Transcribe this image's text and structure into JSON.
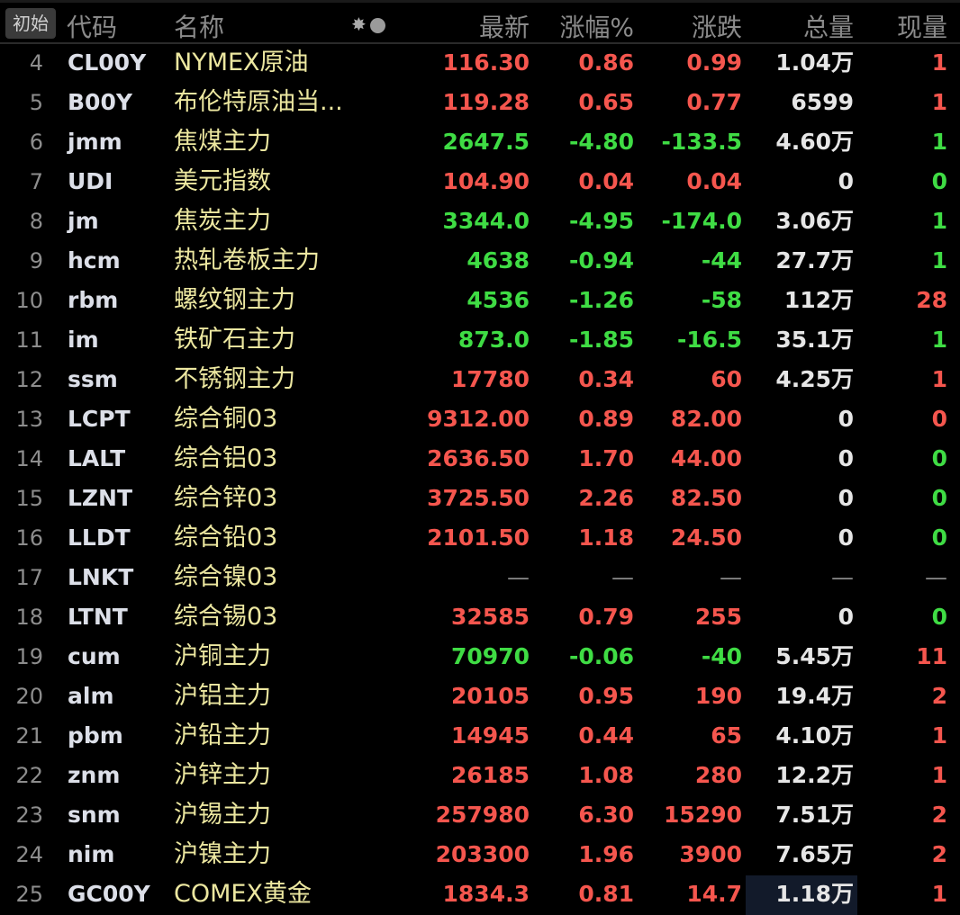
{
  "header": {
    "init_button": "初始",
    "columns": {
      "code": "代码",
      "name": "名称",
      "last": "最新",
      "pct": "涨幅%",
      "change": "涨跌",
      "volume": "总量",
      "current": "现量"
    },
    "icons": [
      "sun-icon",
      "circle-icon"
    ]
  },
  "colors": {
    "up": "#f5564e",
    "down": "#3fdc44",
    "name": "#ece7a0",
    "code": "#dcdfe8"
  },
  "rows": [
    {
      "n": "4",
      "code": "CL00Y",
      "name": "NYMEX原油",
      "last": "116.30",
      "pct": "0.86",
      "chg": "0.99",
      "vol": "1.04万",
      "cur": "1",
      "dir": "up",
      "curdir": "up"
    },
    {
      "n": "5",
      "code": "B00Y",
      "name": "布伦特原油当...",
      "last": "119.28",
      "pct": "0.65",
      "chg": "0.77",
      "vol": "6599",
      "cur": "1",
      "dir": "up",
      "curdir": "up"
    },
    {
      "n": "6",
      "code": "jmm",
      "name": "焦煤主力",
      "last": "2647.5",
      "pct": "-4.80",
      "chg": "-133.5",
      "vol": "4.60万",
      "cur": "1",
      "dir": "down",
      "curdir": "down"
    },
    {
      "n": "7",
      "code": "UDI",
      "name": "美元指数",
      "last": "104.90",
      "pct": "0.04",
      "chg": "0.04",
      "vol": "0",
      "cur": "0",
      "dir": "up",
      "curdir": "down"
    },
    {
      "n": "8",
      "code": "jm",
      "name": "焦炭主力",
      "last": "3344.0",
      "pct": "-4.95",
      "chg": "-174.0",
      "vol": "3.06万",
      "cur": "1",
      "dir": "down",
      "curdir": "down"
    },
    {
      "n": "9",
      "code": "hcm",
      "name": "热轧卷板主力",
      "last": "4638",
      "pct": "-0.94",
      "chg": "-44",
      "vol": "27.7万",
      "cur": "1",
      "dir": "down",
      "curdir": "down"
    },
    {
      "n": "10",
      "code": "rbm",
      "name": "螺纹钢主力",
      "last": "4536",
      "pct": "-1.26",
      "chg": "-58",
      "vol": "112万",
      "cur": "28",
      "dir": "down",
      "curdir": "up"
    },
    {
      "n": "11",
      "code": "im",
      "name": "铁矿石主力",
      "last": "873.0",
      "pct": "-1.85",
      "chg": "-16.5",
      "vol": "35.1万",
      "cur": "1",
      "dir": "down",
      "curdir": "down"
    },
    {
      "n": "12",
      "code": "ssm",
      "name": "不锈钢主力",
      "last": "17780",
      "pct": "0.34",
      "chg": "60",
      "vol": "4.25万",
      "cur": "1",
      "dir": "up",
      "curdir": "up"
    },
    {
      "n": "13",
      "code": "LCPT",
      "name": "综合铜03",
      "last": "9312.00",
      "pct": "0.89",
      "chg": "82.00",
      "vol": "0",
      "cur": "0",
      "dir": "up",
      "curdir": "up"
    },
    {
      "n": "14",
      "code": "LALT",
      "name": "综合铝03",
      "last": "2636.50",
      "pct": "1.70",
      "chg": "44.00",
      "vol": "0",
      "cur": "0",
      "dir": "up",
      "curdir": "down"
    },
    {
      "n": "15",
      "code": "LZNT",
      "name": "综合锌03",
      "last": "3725.50",
      "pct": "2.26",
      "chg": "82.50",
      "vol": "0",
      "cur": "0",
      "dir": "up",
      "curdir": "down"
    },
    {
      "n": "16",
      "code": "LLDT",
      "name": "综合铅03",
      "last": "2101.50",
      "pct": "1.18",
      "chg": "24.50",
      "vol": "0",
      "cur": "0",
      "dir": "up",
      "curdir": "down"
    },
    {
      "n": "17",
      "code": "LNKT",
      "name": "综合镍03",
      "last": "—",
      "pct": "—",
      "chg": "—",
      "vol": "—",
      "cur": "—",
      "dir": "flat",
      "curdir": "flat"
    },
    {
      "n": "18",
      "code": "LTNT",
      "name": "综合锡03",
      "last": "32585",
      "pct": "0.79",
      "chg": "255",
      "vol": "0",
      "cur": "0",
      "dir": "up",
      "curdir": "down"
    },
    {
      "n": "19",
      "code": "cum",
      "name": "沪铜主力",
      "last": "70970",
      "pct": "-0.06",
      "chg": "-40",
      "vol": "5.45万",
      "cur": "11",
      "dir": "down",
      "curdir": "up"
    },
    {
      "n": "20",
      "code": "alm",
      "name": "沪铝主力",
      "last": "20105",
      "pct": "0.95",
      "chg": "190",
      "vol": "19.4万",
      "cur": "2",
      "dir": "up",
      "curdir": "up"
    },
    {
      "n": "21",
      "code": "pbm",
      "name": "沪铅主力",
      "last": "14945",
      "pct": "0.44",
      "chg": "65",
      "vol": "4.10万",
      "cur": "1",
      "dir": "up",
      "curdir": "up"
    },
    {
      "n": "22",
      "code": "znm",
      "name": "沪锌主力",
      "last": "26185",
      "pct": "1.08",
      "chg": "280",
      "vol": "12.2万",
      "cur": "1",
      "dir": "up",
      "curdir": "up"
    },
    {
      "n": "23",
      "code": "snm",
      "name": "沪锡主力",
      "last": "257980",
      "pct": "6.30",
      "chg": "15290",
      "vol": "7.51万",
      "cur": "2",
      "dir": "up",
      "curdir": "up"
    },
    {
      "n": "24",
      "code": "nim",
      "name": "沪镍主力",
      "last": "203300",
      "pct": "1.96",
      "chg": "3900",
      "vol": "7.65万",
      "cur": "2",
      "dir": "up",
      "curdir": "up"
    },
    {
      "n": "25",
      "code": "GC00Y",
      "name": "COMEX黄金",
      "last": "1834.3",
      "pct": "0.81",
      "chg": "14.7",
      "vol": "1.18万",
      "cur": "1",
      "dir": "up",
      "curdir": "up",
      "selected_cell": "vol"
    }
  ]
}
